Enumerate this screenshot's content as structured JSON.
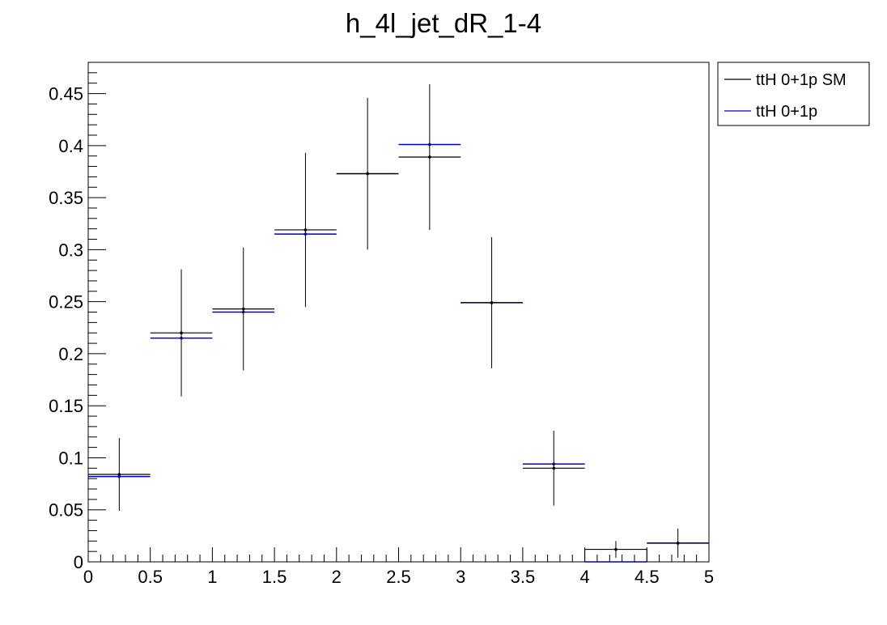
{
  "chart_data": {
    "type": "scatter",
    "style": "histogram-error-bars",
    "title": "h_4l_jet_dR_1-4",
    "xlabel": "",
    "ylabel": "",
    "xlim": [
      0,
      5
    ],
    "ylim": [
      0,
      0.48
    ],
    "x_ticks": [
      "0",
      "0.5",
      "1",
      "1.5",
      "2",
      "2.5",
      "3",
      "3.5",
      "4",
      "4.5",
      "5"
    ],
    "y_ticks": [
      "0",
      "0.05",
      "0.1",
      "0.15",
      "0.2",
      "0.25",
      "0.3",
      "0.35",
      "0.4",
      "0.45"
    ],
    "grid": false,
    "legend_position": "top-right, outside plot",
    "bin_edges": [
      0,
      0.5,
      1,
      1.5,
      2,
      2.5,
      3,
      3.5,
      4,
      4.5,
      5
    ],
    "series": [
      {
        "name": "ttH 0+1p SM",
        "color": "#000000",
        "values": [
          0.084,
          0.22,
          0.243,
          0.319,
          0.373,
          0.389,
          0.249,
          0.09,
          0.012,
          0.018
        ],
        "errors": [
          0.035,
          0.061,
          0.059,
          0.074,
          0.073,
          0.07,
          0.063,
          0.036,
          0.008,
          0.014
        ]
      },
      {
        "name": "ttH 0+1p",
        "color": "#0000cc",
        "values": [
          0.082,
          0.215,
          0.24,
          0.315,
          0.373,
          0.401,
          0.249,
          0.094,
          0.0,
          0.018
        ],
        "errors": [
          0.0,
          0.0,
          0.0,
          0.0,
          0.0,
          0.0,
          0.0,
          0.0,
          0.0,
          0.0
        ]
      }
    ]
  }
}
